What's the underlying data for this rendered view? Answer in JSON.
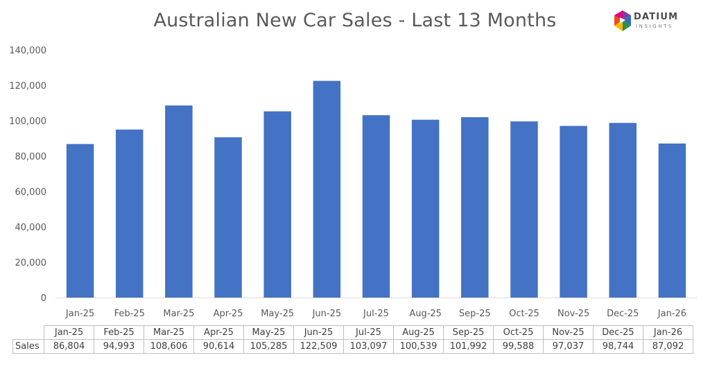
{
  "title": "Australian New Car Sales  - Last 13 Months",
  "logo": {
    "word": "DATIUM",
    "sub": "INSIGHTS",
    "icon": "datium-hexagon-logo",
    "colors": [
      "#e94e1b",
      "#fbb900",
      "#2f8f4f",
      "#2f6db5",
      "#7b3fa0"
    ]
  },
  "chart_data": {
    "type": "bar",
    "categories": [
      "Jan-25",
      "Feb-25",
      "Mar-25",
      "Apr-25",
      "May-25",
      "Jun-25",
      "Jul-25",
      "Aug-25",
      "Sep-25",
      "Oct-25",
      "Nov-25",
      "Dec-25",
      "Jan-26"
    ],
    "series": [
      {
        "name": "Sales",
        "values": [
          86804,
          94993,
          108606,
          90614,
          105285,
          122509,
          103097,
          100539,
          101992,
          99588,
          97037,
          98744,
          87092
        ]
      }
    ],
    "ylim": [
      0,
      140000
    ],
    "yticks": [
      "0",
      "20,000",
      "40,000",
      "60,000",
      "80,000",
      "100,000",
      "120,000",
      "140,000"
    ],
    "grid": false,
    "bar_color": "#4472c4",
    "data_table": {
      "row_label": "Sales",
      "values": [
        "86,804",
        "94,993",
        "108,606",
        "90,614",
        "105,285",
        "122,509",
        "103,097",
        "100,539",
        "101,992",
        "99,588",
        "97,037",
        "98,744",
        "87,092"
      ]
    }
  }
}
